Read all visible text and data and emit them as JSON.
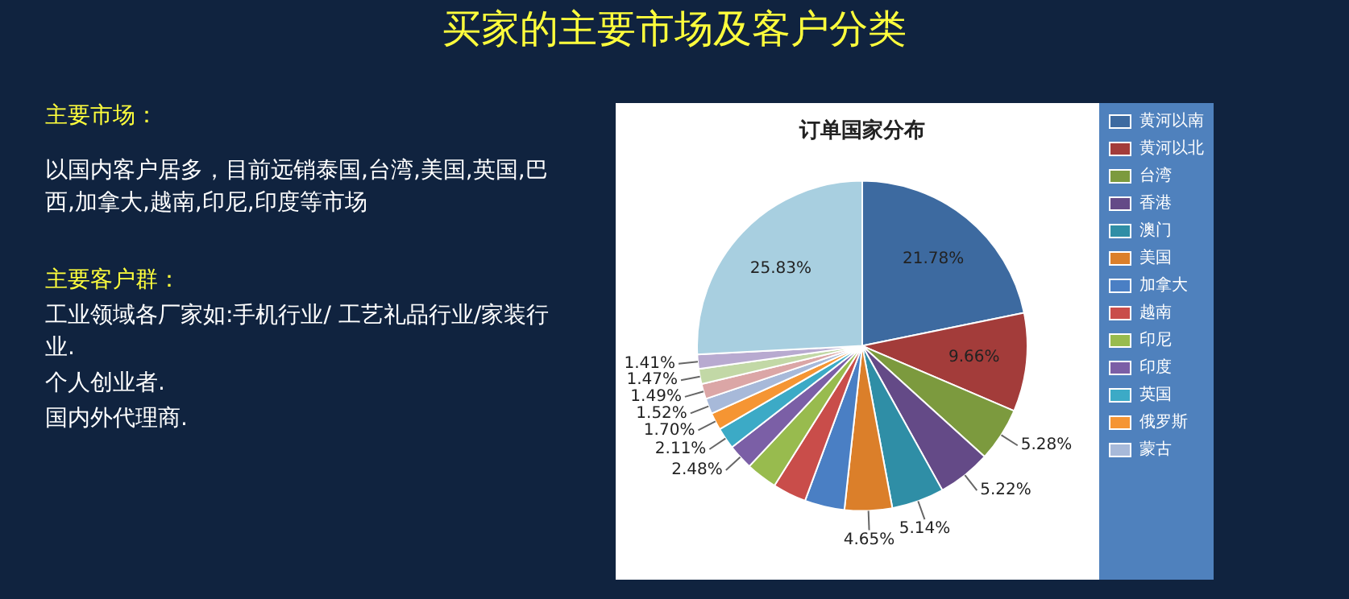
{
  "chart_data": {
    "type": "pie",
    "title": "订单国家分布",
    "subtitle": "买家的主要市场及客户分类",
    "annotations": [
      "主要市场：",
      "以国内客户居多，目前远销泰国,台湾,美国,英国,巴西,加拿大,越南,印尼,印度等市场",
      "主要客户群：",
      "工业领域各厂家如:手机行业/ 工艺礼品行业/家装行业.",
      "个人创业者.",
      "国内外代理商."
    ],
    "categories": [
      "黄河以南",
      "黄河以北",
      "台湾",
      "香港",
      "澳门",
      "美国",
      "加拿大",
      "越南",
      "印尼",
      "印度",
      "英国",
      "俄罗斯",
      "蒙古",
      null,
      null,
      null,
      null
    ],
    "values": [
      21.78,
      9.66,
      5.28,
      5.22,
      5.14,
      4.65,
      3.9,
      3.3,
      3.06,
      2.48,
      2.11,
      1.7,
      1.52,
      1.49,
      1.47,
      1.41,
      25.83
    ],
    "value_labels": [
      "21.78%",
      "9.66%",
      "5.28%",
      "5.22%",
      "5.14%",
      "4.65%",
      null,
      null,
      null,
      "2.48%",
      "2.11%",
      "1.70%",
      "1.52%",
      "1.49%",
      "1.47%",
      "1.41%",
      "25.83%"
    ],
    "colors": [
      "#3d6aa0",
      "#a33c3a",
      "#7c9a3e",
      "#644a87",
      "#2f8ea6",
      "#db7f2a",
      "#4a7fc4",
      "#c94d4a",
      "#98bb4e",
      "#7b5fa6",
      "#3caac6",
      "#f59533",
      "#a7b9d9",
      "#dba6a6",
      "#c2d8a6",
      "#b8aad0",
      "#a8cfe0"
    ],
    "legend": "right"
  }
}
